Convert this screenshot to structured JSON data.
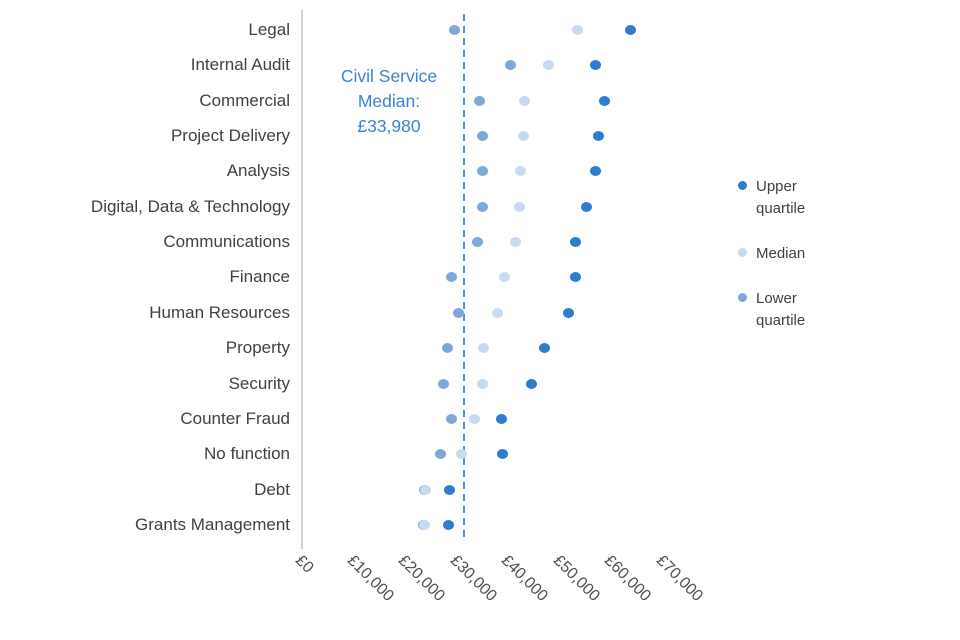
{
  "chart_data": {
    "type": "scatter",
    "title": "",
    "xlabel": "",
    "ylabel": "",
    "xlim": [
      0,
      75000
    ],
    "grid": "off",
    "legend_position": "right",
    "categories": [
      "Legal",
      "Internal Audit",
      "Commercial",
      "Project Delivery",
      "Analysis",
      "Digital, Data & Technology",
      "Communications",
      "Finance",
      "Human Resources",
      "Property",
      "Security",
      "Counter Fraud",
      "No function",
      "Debt",
      "Grants Management"
    ],
    "series": [
      {
        "name": "Upper quartile",
        "color": "#2e7ccf",
        "values": [
          63700,
          56900,
          58800,
          57500,
          56900,
          55300,
          53200,
          53200,
          51700,
          47000,
          44500,
          38800,
          39000,
          28700,
          28400
        ]
      },
      {
        "name": "Median",
        "color": "#c7daf1",
        "values": [
          53400,
          47800,
          43300,
          43100,
          42500,
          42300,
          41400,
          39400,
          37900,
          35300,
          35000,
          33400,
          30900,
          24000,
          23800
        ]
      },
      {
        "name": "Lower quartile",
        "color": "#7fa7da",
        "values": [
          29700,
          40400,
          34400,
          35100,
          35100,
          35000,
          34000,
          29100,
          30300,
          28300,
          27400,
          29100,
          26800,
          23800,
          23600
        ]
      }
    ],
    "x_axis": {
      "tick_values": [
        0,
        10000,
        20000,
        30000,
        40000,
        50000,
        60000,
        70000
      ],
      "tick_labels": [
        "£0",
        "£10,000",
        "£20,000",
        "£30,000",
        "£40,000",
        "£50,000",
        "£60,000",
        "£70,000"
      ]
    },
    "annotation": {
      "lines": [
        "Civil Service",
        "Median:",
        "£33,980"
      ],
      "value": 33980,
      "color": "#3b82d4"
    }
  },
  "colors": {
    "axis_line": "#d2d2d2",
    "dashed_line": "#4f93dd",
    "category_label": "#414141",
    "tick_label": "#4d4d4d"
  }
}
